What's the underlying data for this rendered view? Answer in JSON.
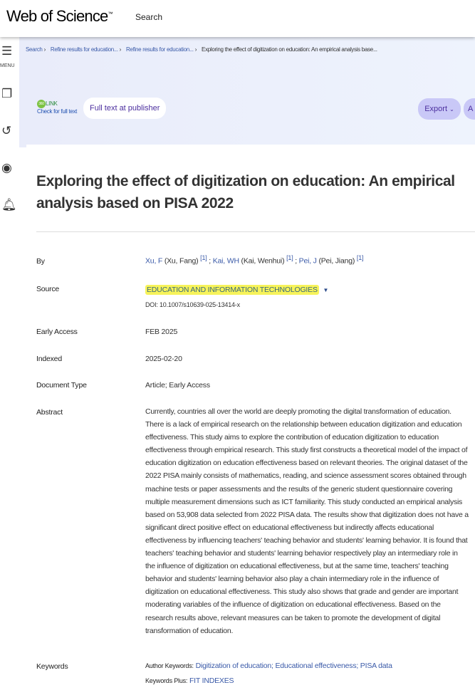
{
  "header": {
    "logo": "Web of Science",
    "tm": "™",
    "search": "Search"
  },
  "sidebar": {
    "menu_label": "MENU",
    "icons": [
      "menu-collapse-icon",
      "bookmark-icon",
      "history-icon",
      "account-icon",
      "bell-icon"
    ]
  },
  "breadcrumb": [
    "Search",
    "Refine results for education...",
    "Refine results for education...",
    "Exploring the effect of digitization on education: An empirical analysis base..."
  ],
  "actions": {
    "link360_badge": "360",
    "link360_title": "LINK",
    "link360_sub": "Check for full text",
    "full_text": "Full text at publisher",
    "export": "Export",
    "more": "A"
  },
  "record": {
    "title": "Exploring the effect of digitization on education: An empirical analysis based on PISA 2022",
    "by_label": "By",
    "authors": [
      {
        "short": "Xu, F",
        "full": "(Xu, Fang)",
        "ref": "[1]"
      },
      {
        "short": "Kai, WH",
        "full": "(Kai, Wenhui)",
        "ref": "[1]"
      },
      {
        "short": "Pei, J",
        "full": "(Pei, Jiang)",
        "ref": "[1]"
      }
    ],
    "source_label": "Source",
    "source": "EDUCATION AND INFORMATION TECHNOLOGIES",
    "doi": "DOI: 10.1007/s10639-025-13414-x",
    "early_access_label": "Early Access",
    "early_access": "FEB 2025",
    "indexed_label": "Indexed",
    "indexed": "2025-02-20",
    "doctype_label": "Document Type",
    "doctype": "Article; Early Access",
    "abstract_label": "Abstract",
    "abstract": "Currently, countries all over the world are deeply promoting the digital transformation of education. There is a lack of empirical research on the relationship between education digitization and education effectiveness. This study aims to explore the contribution of education digitization to education effectiveness through empirical research. This study first constructs a theoretical model of the impact of education digitization on education effectiveness based on relevant theories. The original dataset of the 2022 PISA mainly consists of mathematics, reading, and science assessment scores obtained through machine tests or paper assessments and the results of the generic student questionnaire covering multiple measurement dimensions such as ICT familiarity. This study conducted an empirical analysis based on 53,908 data selected from 2022 PISA data. The results show that digitization does not have a significant direct positive effect on educational effectiveness but indirectly affects educational effectiveness by influencing teachers' teaching behavior and students' learning behavior. It is found that teachers' teaching behavior and students' learning behavior respectively play an intermediary role in the influence of digitization on educational effectiveness, but at the same time, teachers' teaching behavior and students' learning behavior also play a chain intermediary role in the influence of digitization on educational effectiveness. This study also shows that grade and gender are important moderating variables of the influence of digitization on educational effectiveness. Based on the research results above, relevant measures can be taken to promote the development of digital transformation of education.",
    "keywords_label": "Keywords",
    "author_kw_label": "Author Keywords:",
    "author_kw": "Digitization of education; Educational effectiveness; PISA data",
    "kw_plus_label": "Keywords Plus:",
    "kw_plus": "FIT INDEXES"
  }
}
